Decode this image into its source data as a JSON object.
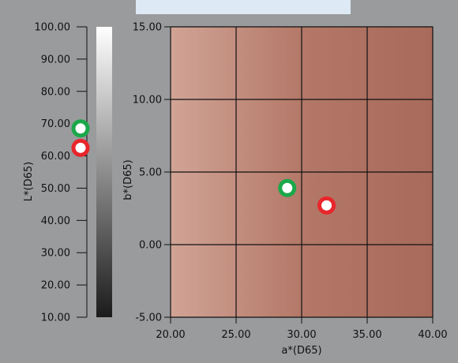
{
  "chart_data": [
    {
      "type": "scatter",
      "id": "lightness",
      "ylabel": "L*(D65)",
      "ylim": [
        10,
        100
      ],
      "yticks": [
        "10.00",
        "20.00",
        "30.00",
        "40.00",
        "50.00",
        "60.00",
        "70.00",
        "80.00",
        "90.00",
        "100.00"
      ],
      "points": [
        {
          "y": 68.5,
          "color": "#1aa84a"
        },
        {
          "y": 62.5,
          "color": "#e8262b"
        }
      ]
    },
    {
      "type": "scatter",
      "id": "ab-plane",
      "xlabel": "a*(D65)",
      "ylabel": "b*(D65)",
      "xlim": [
        20,
        40
      ],
      "ylim": [
        -5,
        15
      ],
      "xticks": [
        "20.00",
        "25.00",
        "30.00",
        "35.00",
        "40.00"
      ],
      "yticks": [
        "-5.00",
        "0.00",
        "5.00",
        "10.00",
        "15.00"
      ],
      "grid": true,
      "points": [
        {
          "x": 28.9,
          "y": 3.9,
          "color": "#1aa84a"
        },
        {
          "x": 31.9,
          "y": 2.7,
          "color": "#e8262b"
        }
      ]
    }
  ],
  "colors": {
    "background": "#9a9b9d",
    "plane_light": "#d1a496",
    "plane_dark": "#a86a5a",
    "green_marker": "#1aa84a",
    "red_marker": "#e8262b"
  }
}
